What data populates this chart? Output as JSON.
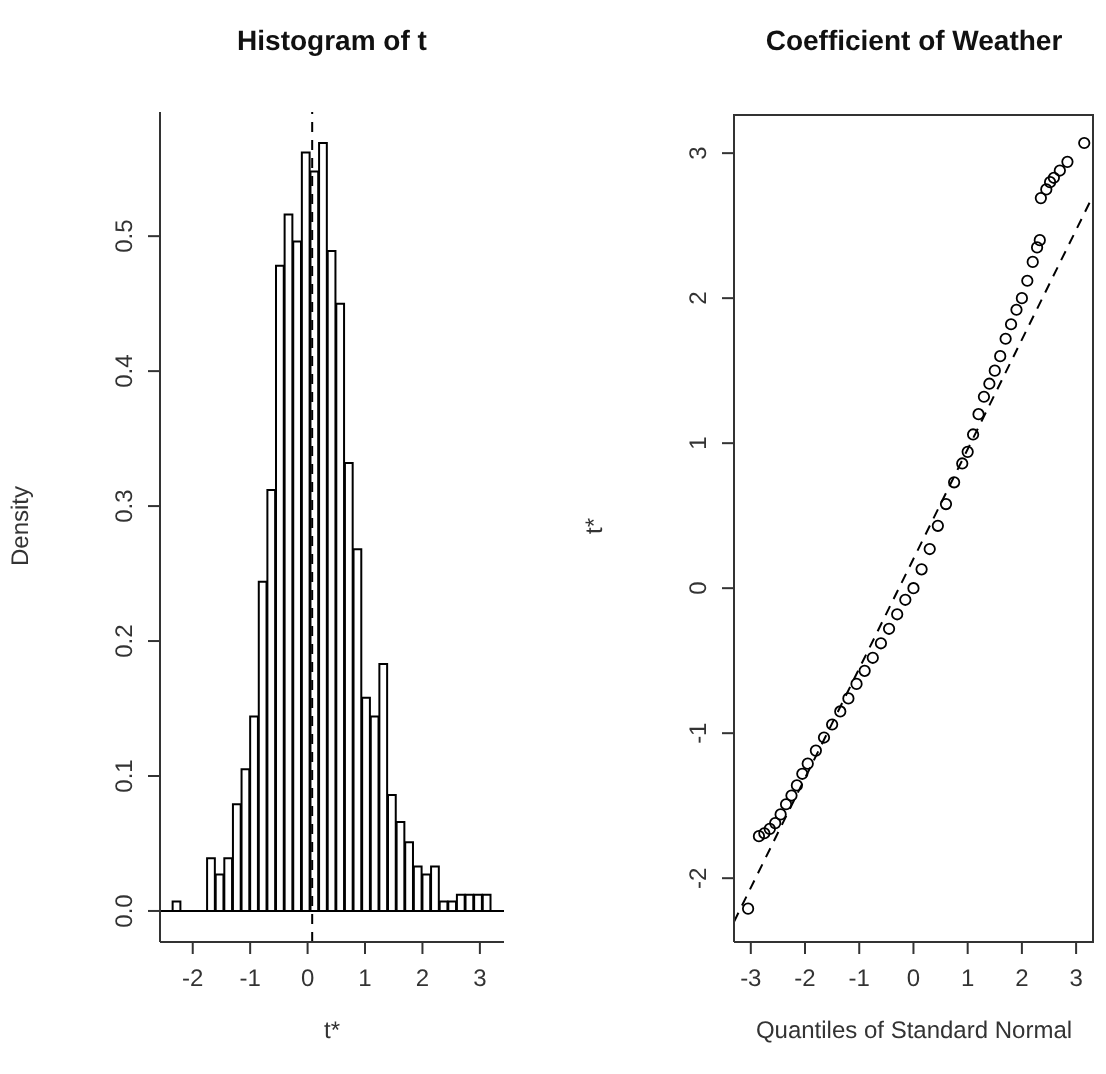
{
  "chart_data": [
    {
      "type": "histogram",
      "title": "Histogram of t",
      "xlabel": "t*",
      "ylabel": "Density",
      "color": "#ffffff",
      "bins": [
        -2.35,
        -2.2,
        -2.05,
        -1.9,
        -1.75,
        -1.6,
        -1.45,
        -1.3,
        -1.15,
        -1.0,
        -0.85,
        -0.7,
        -0.55,
        -0.4,
        -0.25,
        -0.1,
        0.05,
        0.2,
        0.35,
        0.5,
        0.65,
        0.8,
        0.95,
        1.1,
        1.25,
        1.4,
        1.55,
        1.7,
        1.85,
        2.0,
        2.15,
        2.3,
        2.45,
        2.6,
        2.75,
        2.9,
        3.05,
        3.2
      ],
      "values": [
        0.007,
        0,
        0,
        0,
        0.039,
        0.027,
        0.039,
        0.079,
        0.105,
        0.144,
        0.244,
        0.312,
        0.478,
        0.516,
        0.496,
        0.562,
        0.548,
        0.569,
        0.489,
        0.45,
        0.332,
        0.268,
        0.158,
        0.144,
        0.183,
        0.086,
        0.066,
        0.051,
        0.033,
        0.027,
        0.033,
        0.007,
        0.007,
        0.012,
        0.012,
        0.012,
        0.012
      ],
      "xlim": [
        -2.57,
        3.42
      ],
      "xticks": [
        -2,
        -1,
        0,
        1,
        2,
        3
      ],
      "ylim": [
        -0.023,
        0.592
      ],
      "yticks": [
        {
          "value": 0,
          "label": "0.0"
        },
        0.1,
        0.2,
        0.3,
        0.4,
        0.5
      ],
      "ref_lines": [
        {
          "axis": "x",
          "value": 0.08,
          "color": "#000000",
          "line_style": "dashed"
        },
        {
          "axis": "y",
          "value": 0,
          "color": "#000000",
          "line_style": "solid"
        }
      ]
    },
    {
      "type": "scatter",
      "title": "Coefficient of Weather",
      "xlabel": "Quantiles of Standard Normal",
      "ylabel": "t*",
      "xlim": [
        -3.31,
        3.33
      ],
      "xticks": [
        -3,
        -2,
        -1,
        0,
        1,
        2,
        3
      ],
      "ylim": [
        -2.44,
        3.27
      ],
      "yticks": [
        -2,
        -1,
        0,
        1,
        2,
        3
      ],
      "series": [
        {
          "color": "#000000",
          "marker": "circle",
          "x": [
            -3.05,
            -2.85,
            -2.75,
            -2.65,
            -2.55,
            -2.45,
            -2.35,
            -2.25,
            -2.15,
            -2.05,
            -1.95,
            -1.8,
            -1.65,
            -1.5,
            -1.35,
            -1.2,
            -1.05,
            -0.9,
            -0.75,
            -0.6,
            -0.45,
            -0.3,
            -0.15,
            0,
            0.15,
            0.3,
            0.45,
            0.6,
            0.75,
            0.9,
            1.0,
            1.1,
            1.2,
            1.3,
            1.4,
            1.5,
            1.6,
            1.7,
            1.8,
            1.9,
            2.0,
            2.1,
            2.2,
            2.28,
            2.33,
            2.35,
            2.45,
            2.52,
            2.59,
            2.7,
            2.84,
            3.15
          ],
          "values": [
            -2.21,
            -1.71,
            -1.69,
            -1.66,
            -1.62,
            -1.56,
            -1.49,
            -1.43,
            -1.36,
            -1.28,
            -1.21,
            -1.12,
            -1.03,
            -0.94,
            -0.85,
            -0.76,
            -0.66,
            -0.57,
            -0.48,
            -0.38,
            -0.28,
            -0.18,
            -0.08,
            0.0,
            0.13,
            0.27,
            0.43,
            0.58,
            0.73,
            0.86,
            0.94,
            1.06,
            1.2,
            1.32,
            1.41,
            1.5,
            1.6,
            1.72,
            1.82,
            1.92,
            2.0,
            2.12,
            2.25,
            2.35,
            2.4,
            2.69,
            2.75,
            2.8,
            2.83,
            2.88,
            2.94,
            3.07
          ]
        },
        {
          "type": "line",
          "color": "#000000",
          "line_style": "dashed",
          "x": [
            -3.31,
            3.33
          ],
          "values": [
            -2.3,
            2.72
          ]
        }
      ]
    }
  ]
}
